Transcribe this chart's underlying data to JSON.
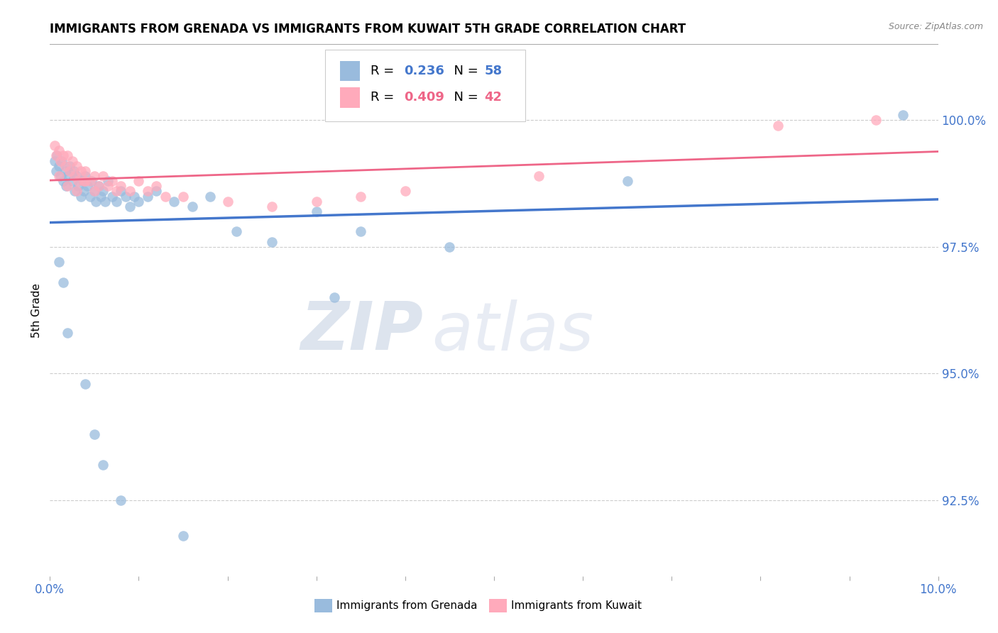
{
  "title": "IMMIGRANTS FROM GRENADA VS IMMIGRANTS FROM KUWAIT 5TH GRADE CORRELATION CHART",
  "source": "Source: ZipAtlas.com",
  "ylabel": "5th Grade",
  "xlim": [
    0.0,
    10.0
  ],
  "ylim": [
    91.0,
    101.5
  ],
  "right_yticks": [
    92.5,
    95.0,
    97.5,
    100.0
  ],
  "right_yticklabels": [
    "92.5%",
    "95.0%",
    "97.5%",
    "100.0%"
  ],
  "blue_color": "#99bbdd",
  "pink_color": "#ffaabb",
  "blue_line_color": "#4477cc",
  "pink_line_color": "#ee6688",
  "blue_r": "0.236",
  "blue_n": "58",
  "pink_r": "0.409",
  "pink_n": "42",
  "watermark_zip": "ZIP",
  "watermark_atlas": "atlas",
  "background_color": "#ffffff",
  "grid_color": "#cccccc",
  "blue_scatter_x": [
    0.05,
    0.07,
    0.08,
    0.1,
    0.12,
    0.13,
    0.15,
    0.17,
    0.18,
    0.2,
    0.22,
    0.25,
    0.27,
    0.28,
    0.3,
    0.32,
    0.35,
    0.37,
    0.38,
    0.4,
    0.42,
    0.45,
    0.47,
    0.5,
    0.52,
    0.55,
    0.57,
    0.6,
    0.62,
    0.65,
    0.7,
    0.75,
    0.8,
    0.85,
    0.9,
    0.95,
    1.0,
    1.1,
    1.2,
    1.4,
    1.6,
    1.8,
    2.1,
    2.5,
    3.0,
    3.5,
    4.5,
    6.5,
    9.6,
    0.1,
    0.15,
    0.2,
    0.4,
    0.5,
    0.6,
    0.8,
    1.5,
    3.2
  ],
  "blue_scatter_y": [
    99.2,
    99.0,
    99.3,
    99.1,
    98.9,
    99.2,
    98.8,
    99.0,
    98.7,
    98.9,
    99.1,
    98.8,
    99.0,
    98.6,
    98.9,
    98.7,
    98.5,
    98.8,
    98.6,
    98.9,
    98.7,
    98.5,
    98.8,
    98.6,
    98.4,
    98.7,
    98.5,
    98.6,
    98.4,
    98.8,
    98.5,
    98.4,
    98.6,
    98.5,
    98.3,
    98.5,
    98.4,
    98.5,
    98.6,
    98.4,
    98.3,
    98.5,
    97.8,
    97.6,
    98.2,
    97.8,
    97.5,
    98.8,
    100.1,
    97.2,
    96.8,
    95.8,
    94.8,
    93.8,
    93.2,
    92.5,
    91.8,
    96.5
  ],
  "pink_scatter_x": [
    0.05,
    0.07,
    0.1,
    0.12,
    0.15,
    0.17,
    0.2,
    0.22,
    0.25,
    0.28,
    0.3,
    0.32,
    0.35,
    0.38,
    0.4,
    0.45,
    0.5,
    0.55,
    0.6,
    0.65,
    0.7,
    0.75,
    0.8,
    0.9,
    1.0,
    1.1,
    1.2,
    1.5,
    2.0,
    2.5,
    3.5,
    4.0,
    5.5,
    8.2,
    9.3,
    0.1,
    0.2,
    0.3,
    0.4,
    0.5,
    1.3,
    3.0
  ],
  "pink_scatter_y": [
    99.5,
    99.3,
    99.4,
    99.2,
    99.3,
    99.1,
    99.3,
    99.0,
    99.2,
    98.9,
    99.1,
    98.8,
    99.0,
    98.8,
    99.0,
    98.8,
    98.9,
    98.7,
    98.9,
    98.7,
    98.8,
    98.6,
    98.7,
    98.6,
    98.8,
    98.6,
    98.7,
    98.5,
    98.4,
    98.3,
    98.5,
    98.6,
    98.9,
    99.9,
    100.0,
    98.9,
    98.7,
    98.6,
    98.8,
    98.6,
    98.5,
    98.4
  ]
}
